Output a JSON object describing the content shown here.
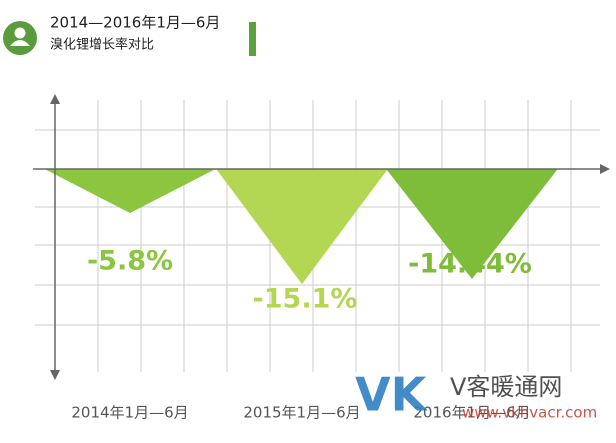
{
  "chart_data": {
    "type": "triangle",
    "title": "2014—2016年1月—6月",
    "subtitle": "溴化锂增长率对比",
    "categories": [
      "2014年1月—6月",
      "2015年1月—6月",
      "2016年1月—6月"
    ],
    "values": [
      -5.8,
      -15.1,
      -14.44
    ],
    "value_labels": [
      "-5.8%",
      "-15.1%",
      "-14.44%"
    ],
    "colors": [
      "#8cc63f",
      "#b3d653",
      "#7dbd3a"
    ],
    "ylim": [
      -27,
      9
    ]
  },
  "watermark": {
    "logo": "VK",
    "name": "V客暖通网",
    "url": "www.vkhvacr.com"
  }
}
